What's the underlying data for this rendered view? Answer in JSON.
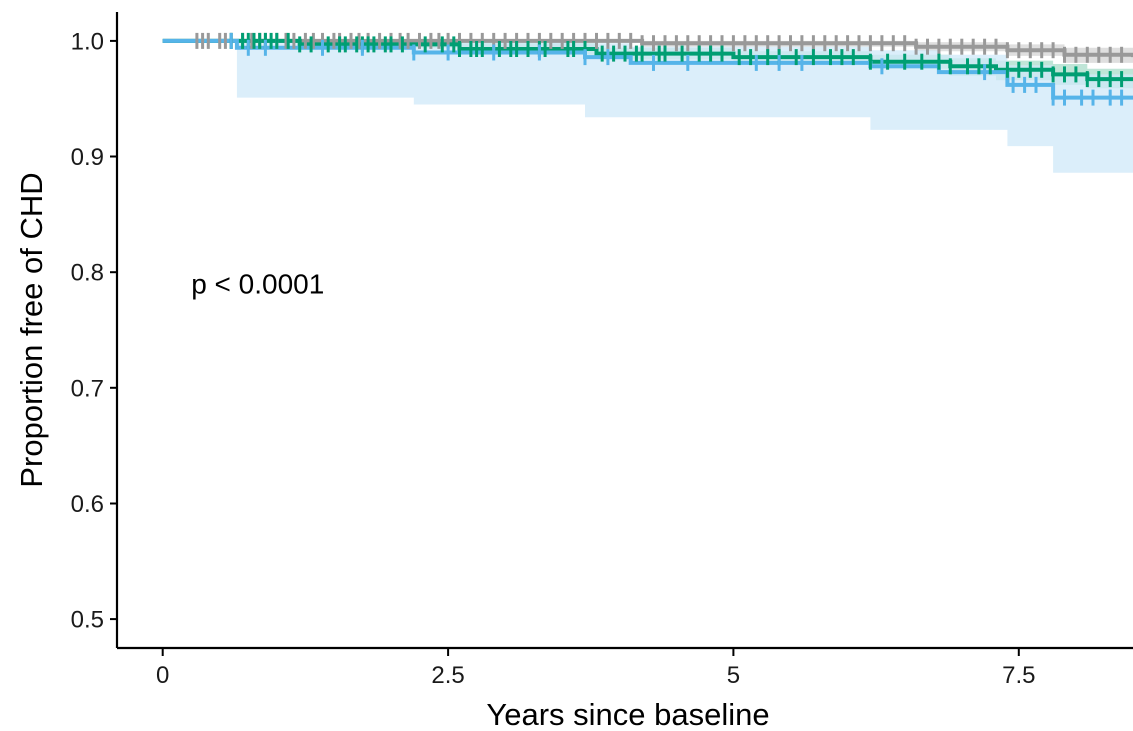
{
  "chart_data": {
    "type": "line",
    "title": "",
    "xlabel": "Years since baseline",
    "ylabel": "Proportion free of CHD",
    "xlim": [
      -0.4,
      8.5
    ],
    "ylim": [
      0.475,
      1.025
    ],
    "x_ticks": [
      0,
      2.5,
      5,
      7.5
    ],
    "x_tick_labels": [
      "0",
      "2.5",
      "5",
      "7.5"
    ],
    "y_ticks": [
      0.5,
      0.6,
      0.7,
      0.8,
      0.9,
      1.0
    ],
    "y_tick_labels": [
      "0.5",
      "0.6",
      "0.7",
      "0.8",
      "0.9",
      "1.0"
    ],
    "grid": false,
    "legend": "none",
    "annotations": [
      {
        "text": "p < 0.0001",
        "x": 0.25,
        "y": 0.79
      }
    ],
    "series": [
      {
        "color": "#999999",
        "band_color": "#d4d4d4",
        "steps": [
          [
            0,
            1.0
          ],
          [
            4.2,
            0.998
          ],
          [
            6.6,
            0.995
          ],
          [
            7.4,
            0.992
          ],
          [
            7.9,
            0.988
          ],
          [
            8.5,
            0.986
          ]
        ],
        "lower": [
          [
            0,
            1.0
          ],
          [
            4.2,
            0.995
          ],
          [
            6.6,
            0.991
          ],
          [
            7.4,
            0.987
          ],
          [
            7.9,
            0.981
          ],
          [
            8.5,
            0.979
          ]
        ],
        "upper": [
          [
            0,
            1.0
          ],
          [
            4.2,
            1.0
          ],
          [
            6.6,
            0.999
          ],
          [
            7.4,
            0.997
          ],
          [
            7.9,
            0.994
          ],
          [
            8.5,
            0.993
          ]
        ],
        "censor_x": [
          0.3,
          0.35,
          0.4,
          0.5,
          0.55,
          0.6,
          0.7,
          0.78,
          0.85,
          0.9,
          1.0,
          1.08,
          1.15,
          1.25,
          1.32,
          1.4,
          1.5,
          1.55,
          1.65,
          1.72,
          1.8,
          1.9,
          2.0,
          2.08,
          2.15,
          2.25,
          2.35,
          2.42,
          2.5,
          2.6,
          2.7,
          2.8,
          2.9,
          3.0,
          3.1,
          3.2,
          3.3,
          3.4,
          3.5,
          3.6,
          3.7,
          3.8,
          3.9,
          4.0,
          4.1,
          4.2,
          4.3,
          4.4,
          4.5,
          4.6,
          4.7,
          4.8,
          4.9,
          5.0,
          5.1,
          5.2,
          5.3,
          5.4,
          5.5,
          5.6,
          5.7,
          5.8,
          5.9,
          6.0,
          6.1,
          6.2,
          6.3,
          6.4,
          6.5,
          6.6,
          6.7,
          6.8,
          6.9,
          7.0,
          7.1,
          7.2,
          7.3,
          7.4,
          7.5,
          7.6,
          7.7,
          7.8,
          7.9,
          8.0,
          8.1,
          8.2,
          8.3,
          8.4
        ]
      },
      {
        "color": "#009e73",
        "band_color": "#a9dcc9",
        "steps": [
          [
            0,
            1.0
          ],
          [
            1.2,
            0.997
          ],
          [
            2.6,
            0.993
          ],
          [
            3.8,
            0.989
          ],
          [
            5.0,
            0.986
          ],
          [
            6.2,
            0.982
          ],
          [
            6.9,
            0.978
          ],
          [
            7.3,
            0.975
          ],
          [
            7.8,
            0.971
          ],
          [
            8.1,
            0.967
          ],
          [
            8.5,
            0.966
          ]
        ],
        "lower": [
          [
            0,
            1.0
          ],
          [
            1.2,
            0.994
          ],
          [
            2.6,
            0.988
          ],
          [
            3.8,
            0.984
          ],
          [
            5.0,
            0.981
          ],
          [
            6.2,
            0.976
          ],
          [
            6.9,
            0.97
          ],
          [
            7.3,
            0.966
          ],
          [
            7.8,
            0.962
          ],
          [
            8.1,
            0.959
          ],
          [
            8.5,
            0.958
          ]
        ],
        "upper": [
          [
            0,
            1.0
          ],
          [
            1.2,
            1.0
          ],
          [
            2.6,
            0.998
          ],
          [
            3.8,
            0.994
          ],
          [
            5.0,
            0.991
          ],
          [
            6.2,
            0.988
          ],
          [
            6.9,
            0.985
          ],
          [
            7.3,
            0.983
          ],
          [
            7.8,
            0.98
          ],
          [
            8.1,
            0.976
          ],
          [
            8.5,
            0.975
          ]
        ],
        "censor_x": [
          0.6,
          0.7,
          0.75,
          0.8,
          0.85,
          0.9,
          0.95,
          1.0,
          1.1,
          1.2,
          1.3,
          1.45,
          1.55,
          1.6,
          1.7,
          1.75,
          1.8,
          1.85,
          1.95,
          2.0,
          2.1,
          2.3,
          2.45,
          2.55,
          2.6,
          2.7,
          2.75,
          2.8,
          2.95,
          3.05,
          3.1,
          3.2,
          3.3,
          3.35,
          3.55,
          3.6,
          3.7,
          3.85,
          3.95,
          4.05,
          4.15,
          4.2,
          4.35,
          4.4,
          4.55,
          4.7,
          4.8,
          4.9,
          5.05,
          5.15,
          5.3,
          5.4,
          5.55,
          5.7,
          5.85,
          5.95,
          6.05,
          6.2,
          6.35,
          6.5,
          6.65,
          6.8,
          6.9,
          7.05,
          7.15,
          7.25,
          7.4,
          7.5,
          7.6,
          7.7,
          7.8,
          7.9,
          8.0,
          8.1,
          8.2,
          8.3,
          8.4
        ]
      },
      {
        "color": "#56b4e9",
        "band_color": "#cfe8f8",
        "steps": [
          [
            0,
            1.0
          ],
          [
            0.65,
            0.994
          ],
          [
            2.2,
            0.99
          ],
          [
            3.7,
            0.986
          ],
          [
            4.1,
            0.981
          ],
          [
            6.2,
            0.978
          ],
          [
            6.8,
            0.973
          ],
          [
            7.4,
            0.962
          ],
          [
            7.8,
            0.951
          ],
          [
            8.5,
            0.951
          ]
        ],
        "lower": [
          [
            0,
            1.0
          ],
          [
            0.65,
            0.951
          ],
          [
            2.2,
            0.945
          ],
          [
            3.7,
            0.934
          ],
          [
            6.2,
            0.923
          ],
          [
            7.4,
            0.909
          ],
          [
            7.8,
            0.886
          ],
          [
            8.5,
            0.886
          ]
        ],
        "upper": [
          [
            0,
            1.0
          ],
          [
            0.65,
            1.0
          ],
          [
            2.2,
            1.0
          ],
          [
            3.7,
            0.998
          ],
          [
            4.1,
            0.995
          ],
          [
            6.2,
            0.992
          ],
          [
            6.8,
            0.988
          ],
          [
            7.4,
            0.979
          ],
          [
            7.8,
            0.971
          ],
          [
            8.5,
            0.971
          ]
        ],
        "censor_x": [
          0.6,
          0.75,
          0.9,
          1.4,
          1.75,
          2.2,
          2.5,
          2.9,
          3.3,
          3.7,
          3.9,
          4.3,
          4.6,
          5.2,
          5.4,
          5.6,
          6.3,
          7.2,
          7.45,
          7.55,
          7.65,
          7.8,
          7.9,
          8.05,
          8.15,
          8.3,
          8.4
        ]
      }
    ]
  }
}
